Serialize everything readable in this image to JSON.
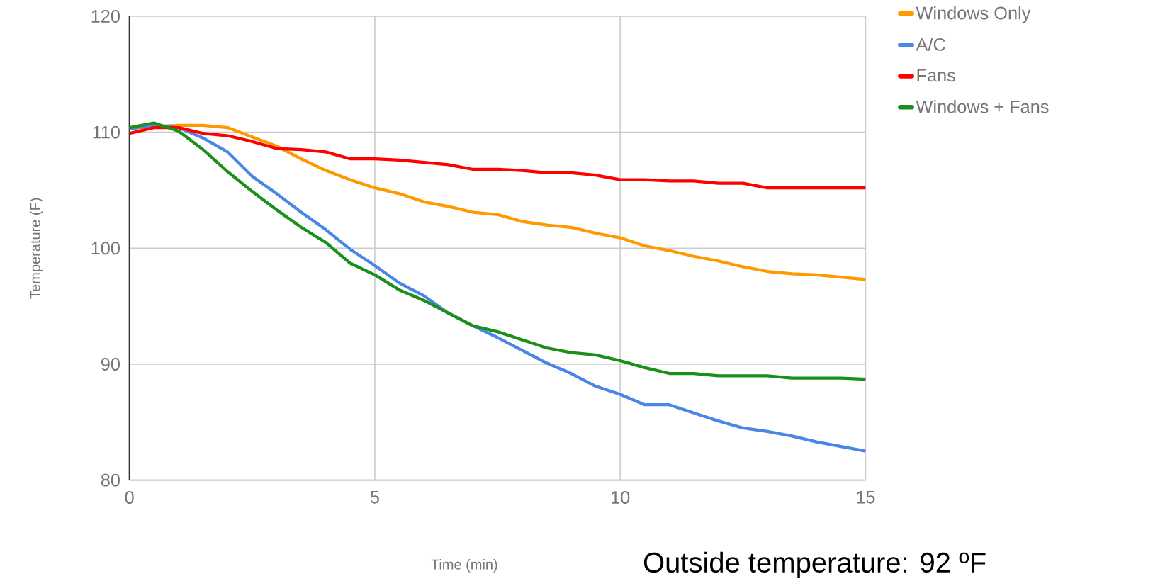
{
  "chart_data": {
    "type": "line",
    "xlabel": "Time (min)",
    "ylabel": "Temperature (F)",
    "x": [
      0,
      0.5,
      1,
      1.5,
      2,
      2.5,
      3,
      3.5,
      4,
      4.5,
      5,
      5.5,
      6,
      6.5,
      7,
      7.5,
      8,
      8.5,
      9,
      9.5,
      10,
      10.5,
      11,
      11.5,
      12,
      12.5,
      13,
      13.5,
      14,
      14.5,
      15
    ],
    "series": [
      {
        "name": "Windows Only",
        "color": "#ff9900",
        "values": [
          110.3,
          110.5,
          110.6,
          110.6,
          110.4,
          109.6,
          108.8,
          107.7,
          106.7,
          105.9,
          105.2,
          104.7,
          104.0,
          103.6,
          103.1,
          102.9,
          102.3,
          102.0,
          101.8,
          101.3,
          100.9,
          100.2,
          99.8,
          99.3,
          98.9,
          98.4,
          98.0,
          97.8,
          97.7,
          97.5,
          97.3
        ]
      },
      {
        "name": "A/C",
        "color": "#4a86e8",
        "values": [
          110.3,
          110.6,
          110.4,
          109.5,
          108.3,
          106.2,
          104.7,
          103.1,
          101.6,
          99.9,
          98.5,
          97.0,
          95.9,
          94.4,
          93.3,
          92.3,
          91.2,
          90.1,
          89.2,
          88.1,
          87.4,
          86.5,
          86.5,
          85.8,
          85.1,
          84.5,
          84.2,
          83.8,
          83.3,
          82.9,
          82.5
        ]
      },
      {
        "name": "Fans",
        "color": "#ff0000",
        "values": [
          109.9,
          110.4,
          110.4,
          109.9,
          109.7,
          109.2,
          108.6,
          108.5,
          108.3,
          107.7,
          107.7,
          107.6,
          107.4,
          107.2,
          106.8,
          106.8,
          106.7,
          106.5,
          106.5,
          106.3,
          105.9,
          105.9,
          105.8,
          105.8,
          105.6,
          105.6,
          105.2,
          105.2,
          105.2,
          105.2,
          105.2
        ]
      },
      {
        "name": "Windows + Fans",
        "color": "#1a8f1a",
        "values": [
          110.4,
          110.8,
          110.1,
          108.5,
          106.6,
          104.9,
          103.3,
          101.8,
          100.5,
          98.7,
          97.7,
          96.4,
          95.5,
          94.4,
          93.3,
          92.8,
          92.1,
          91.4,
          91.0,
          90.8,
          90.3,
          89.7,
          89.2,
          89.2,
          89.0,
          89.0,
          89.0,
          88.8,
          88.8,
          88.8,
          88.7
        ]
      }
    ],
    "xlim": [
      0,
      15
    ],
    "xticks": [
      0,
      5,
      10,
      15
    ],
    "ylim": [
      80,
      120
    ],
    "yticks": [
      80,
      90,
      100,
      110,
      120
    ],
    "grid": true,
    "legend": "top right",
    "marker": "none",
    "line_style": "solid",
    "annotations": [
      "Outside temperature: 92 ºF"
    ]
  }
}
